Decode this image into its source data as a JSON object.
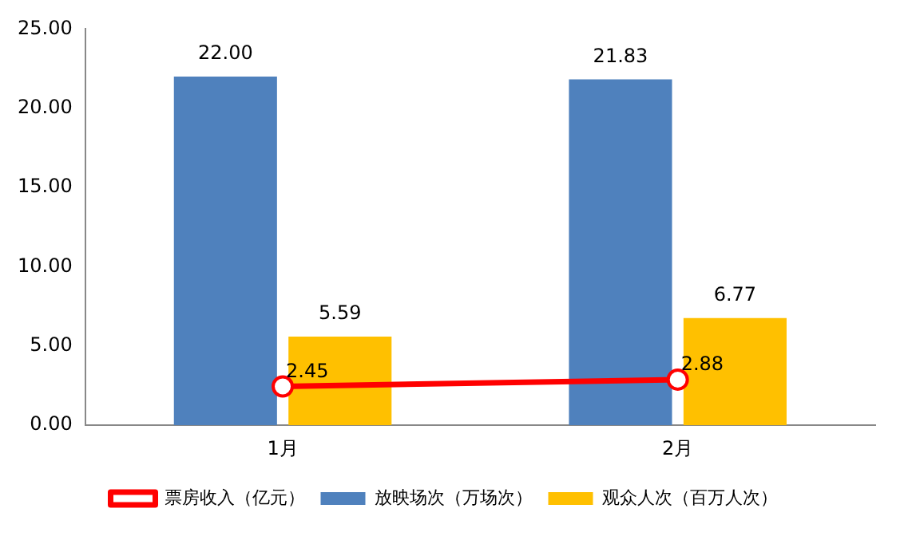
{
  "chart_data": {
    "type": "bar",
    "categories": [
      "1月",
      "2月"
    ],
    "series": [
      {
        "name": "放映场次（万场次）",
        "color": "#4f81bd",
        "values": [
          22.0,
          21.83
        ],
        "value_labels": [
          "22.00",
          "21.83"
        ]
      },
      {
        "name": "观众人次（百万人次）",
        "color": "#ffc000",
        "values": [
          5.59,
          6.77
        ],
        "value_labels": [
          "5.59",
          "6.77"
        ]
      },
      {
        "name": "票房收入（亿元）",
        "type": "line",
        "color": "#ff0000",
        "values": [
          2.45,
          2.88
        ],
        "value_labels": [
          "2.45",
          "2.88"
        ],
        "marker": "circle",
        "line_style": "solid"
      }
    ],
    "ylim": [
      0,
      25
    ],
    "yticks": [
      {
        "value": 0,
        "label": "0.00"
      },
      {
        "value": 5,
        "label": "5.00"
      },
      {
        "value": 10,
        "label": "10.00"
      },
      {
        "value": 15,
        "label": "15.00"
      },
      {
        "value": 20,
        "label": "20.00"
      },
      {
        "value": 25,
        "label": "25.00"
      }
    ],
    "grid": false,
    "legend": "bottom"
  }
}
